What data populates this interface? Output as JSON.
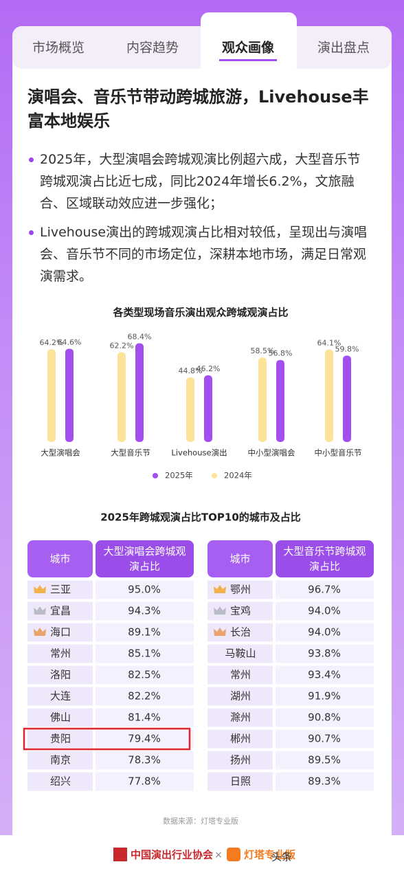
{
  "tabs": [
    "市场概览",
    "内容趋势",
    "观众画像",
    "演出盘点"
  ],
  "active_tab": 2,
  "headline": "演唱会、音乐节带动跨城旅游，Livehouse丰富本地娱乐",
  "bullets": [
    "2025年，大型演唱会跨城观演比例超六成，大型音乐节跨城观演占比近七成，同比2024年增长6.2%，文旅融合、区域联动效应进一步强化；",
    "Livehouse演出的跨城观演占比相对较低，呈现出与演唱会、音乐节不同的市场定位，深耕本地市场，满足日常观演需求。"
  ],
  "chart_data": {
    "type": "bar",
    "title": "各类型现场音乐演出观众跨城观演占比",
    "categories": [
      "大型演唱会",
      "大型音乐节",
      "Livehouse演出",
      "中小型演唱会",
      "中小型音乐节"
    ],
    "series": [
      {
        "name": "2025年",
        "color": "#a24ff0",
        "values": [
          64.6,
          68.4,
          46.2,
          56.8,
          59.8
        ],
        "value_labels": [
          "64.6%",
          "68.4%",
          "46.2%",
          "56.8%",
          "59.8%"
        ]
      },
      {
        "name": "2024年",
        "color": "#fde39a",
        "values": [
          64.2,
          62.2,
          44.8,
          58.5,
          64.1
        ],
        "value_labels": [
          "64.2%",
          "62.2%",
          "44.8%",
          "58.5%",
          "64.1%"
        ]
      }
    ],
    "legend": "bottom"
  },
  "table_title": "2025年跨城观演占比TOP10的城市及占比",
  "tables": [
    {
      "header": [
        "城市",
        "大型演唱会跨城观演占比"
      ],
      "rows": [
        [
          "三亚",
          "95.0%"
        ],
        [
          "宜昌",
          "94.3%"
        ],
        [
          "海口",
          "89.1%"
        ],
        [
          "常州",
          "85.1%"
        ],
        [
          "洛阳",
          "82.5%"
        ],
        [
          "大连",
          "82.2%"
        ],
        [
          "佛山",
          "81.4%"
        ],
        [
          "贵阳",
          "79.4%"
        ],
        [
          "南京",
          "78.3%"
        ],
        [
          "绍兴",
          "77.8%"
        ]
      ]
    },
    {
      "header": [
        "城市",
        "大型音乐节跨城观演占比"
      ],
      "rows": [
        [
          "鄂州",
          "96.7%"
        ],
        [
          "宝鸡",
          "94.0%"
        ],
        [
          "长治",
          "94.0%"
        ],
        [
          "马鞍山",
          "93.8%"
        ],
        [
          "常州",
          "93.4%"
        ],
        [
          "湖州",
          "91.9%"
        ],
        [
          "滁州",
          "90.8%"
        ],
        [
          "郴州",
          "90.7%"
        ],
        [
          "扬州",
          "89.5%"
        ],
        [
          "日照",
          "89.3%"
        ]
      ]
    }
  ],
  "source": "数据来源：灯塔专业版",
  "footer": [
    "中国演出行业协会",
    "×",
    "灯塔专业版",
    "头条"
  ]
}
